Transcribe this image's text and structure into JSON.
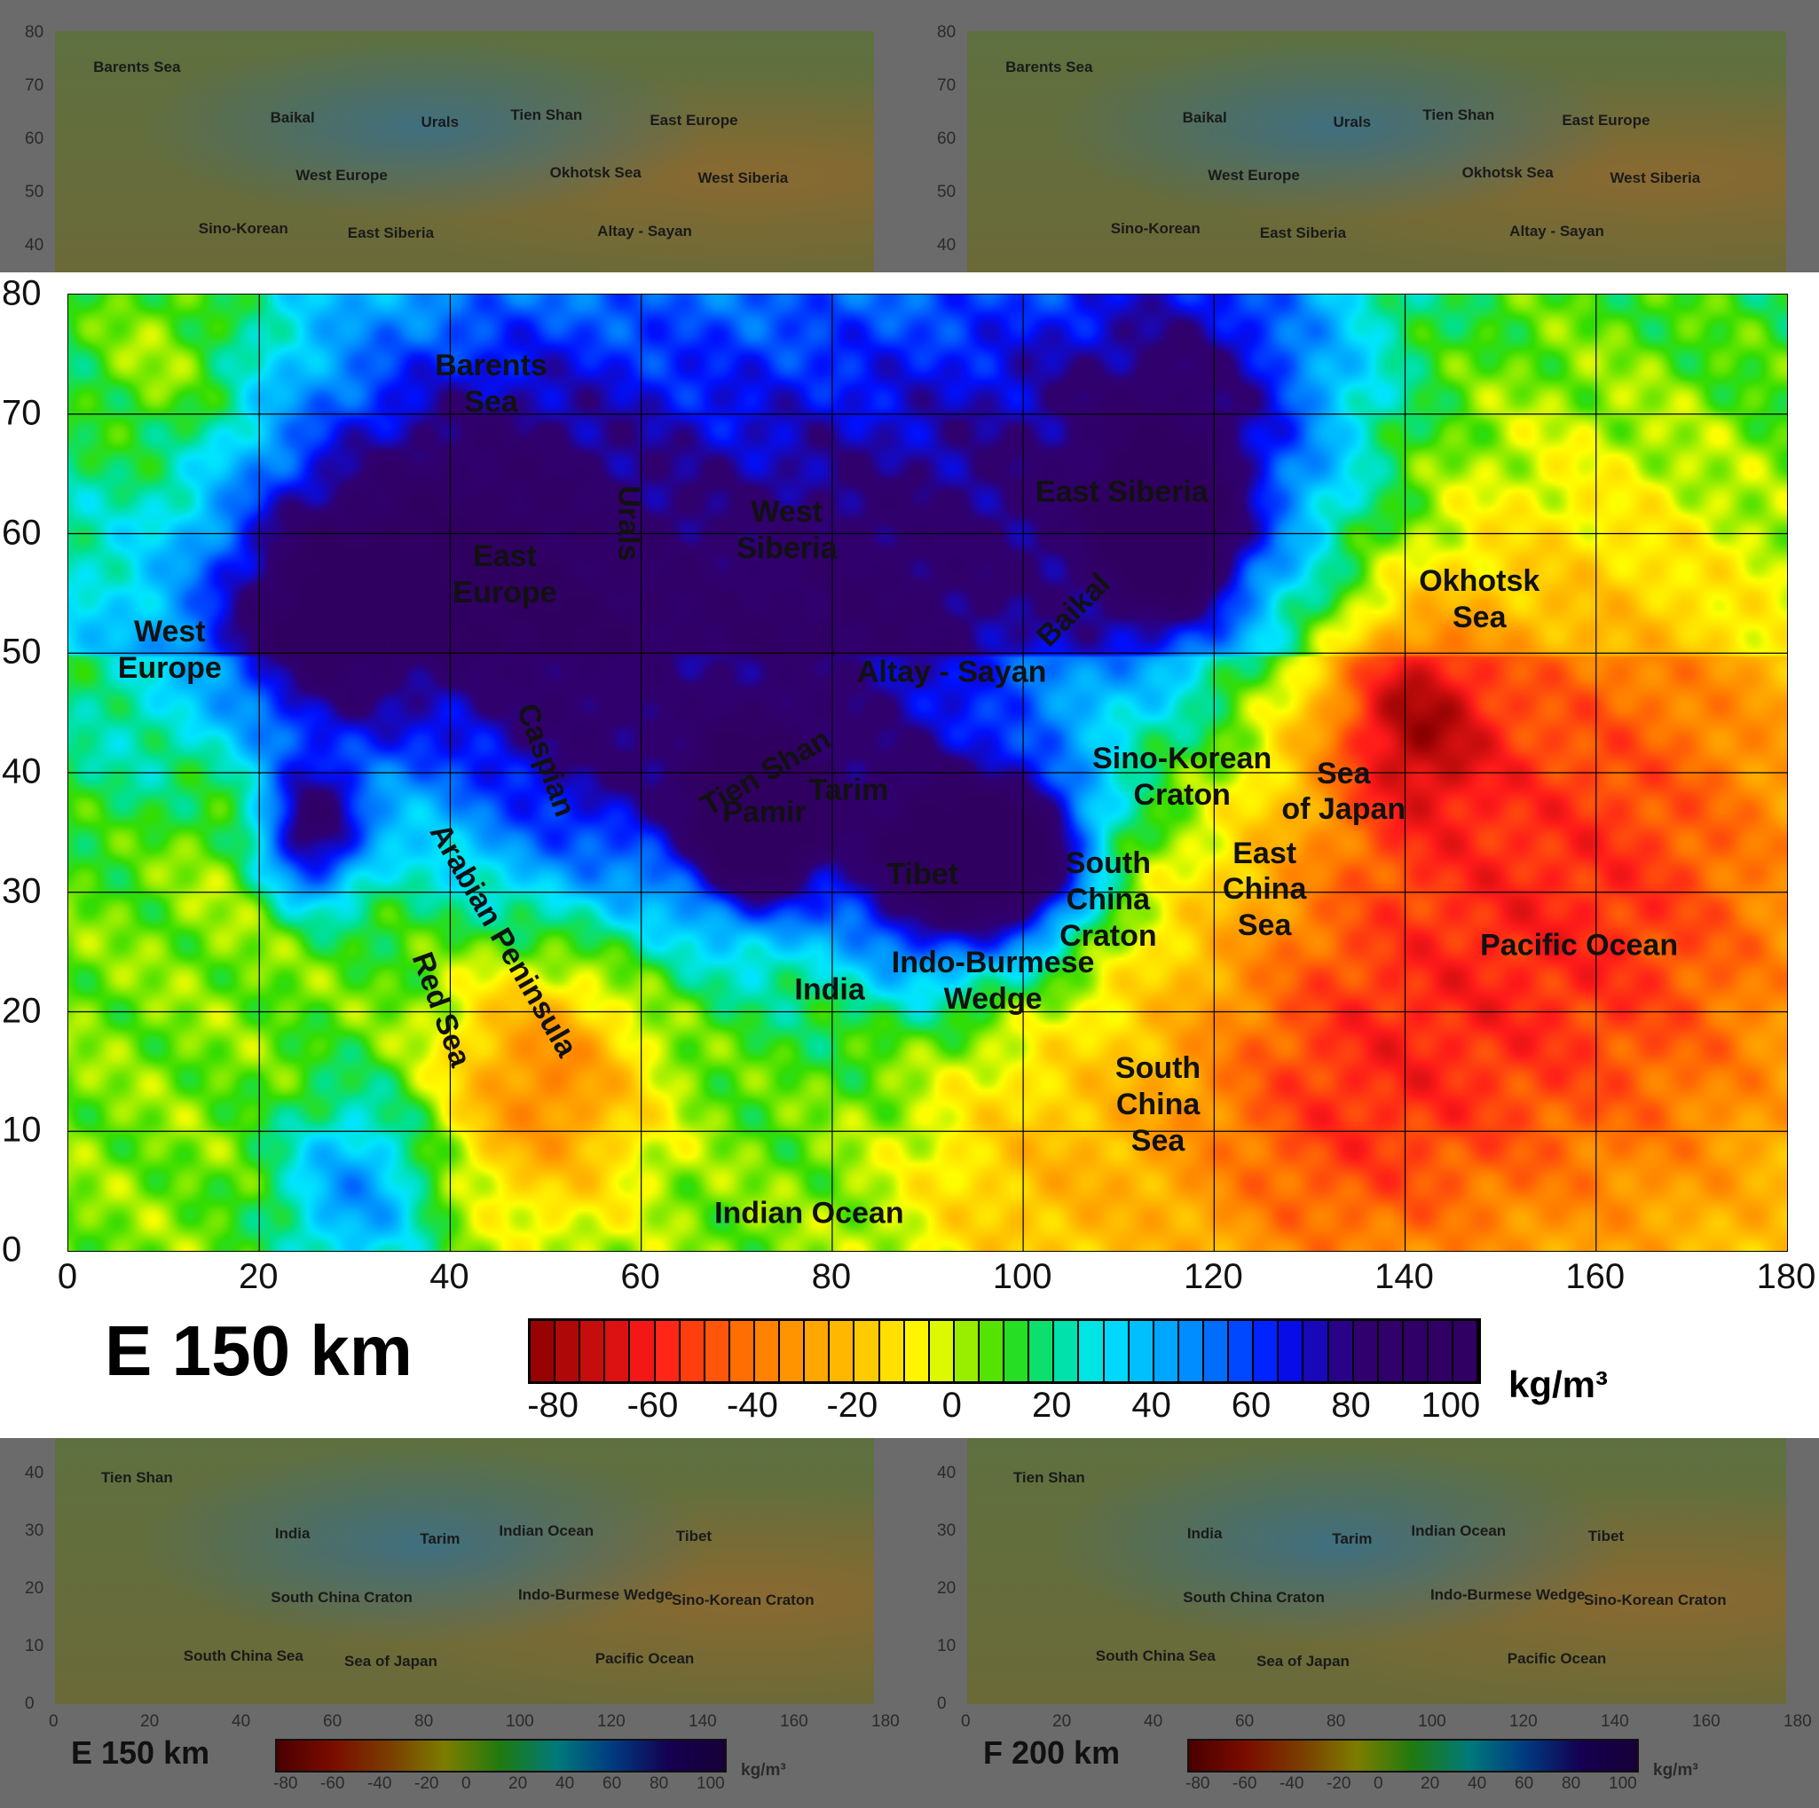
{
  "figure": {
    "panel_title": "E 150 km",
    "unit": "kg/m³",
    "x_ticks": [
      "0",
      "20",
      "40",
      "60",
      "80",
      "100",
      "120",
      "140",
      "160",
      "180"
    ],
    "y_ticks": [
      "0",
      "10",
      "20",
      "30",
      "40",
      "50",
      "60",
      "70",
      "80"
    ],
    "colorbar": {
      "ticks": [
        "-80",
        "-60",
        "-40",
        "-20",
        "0",
        "20",
        "40",
        "60",
        "80",
        "100"
      ],
      "range": [
        -85,
        105
      ],
      "step": 5,
      "colormap": [
        "#8b0000",
        "#ff1a1a",
        "#ff7a00",
        "#ffc000",
        "#ffff00",
        "#33dd00",
        "#00e090",
        "#00e5ff",
        "#0080ff",
        "#0010ff",
        "#300070",
        "#300060"
      ]
    },
    "labels": [
      "Barents Sea",
      "East Siberia",
      "Urals",
      "West Siberia",
      "East Europe",
      "Okhotsk Sea",
      "Baikal",
      "West Europe",
      "Altay - Sayan",
      "Sino-Korean Craton",
      "Caspian",
      "Tien Shan",
      "Tarim",
      "Pamir",
      "Sea of Japan",
      "Arabian Peninsula",
      "Tibet",
      "South China Craton",
      "East China Sea",
      "Pacific Ocean",
      "Indo-Burmese Wedge",
      "India",
      "Red Sea",
      "South China Sea",
      "Indian Ocean"
    ]
  },
  "background_panels": {
    "top_labels": [
      "Barents Sea",
      "Urals",
      "West Siberia",
      "East Siberia",
      "East Europe",
      "West Europe",
      "Altay - Sayan",
      "Baikal",
      "Okhotsk Sea",
      "Sino-Korean",
      "Tien Shan"
    ],
    "top_y_ticks": [
      "80",
      "70",
      "60",
      "50",
      "40"
    ],
    "bottom_left_title": "E 150 km",
    "bottom_right_title": "F 200 km",
    "bottom_labels": [
      "Tien Shan",
      "Tarim",
      "Sino-Korean Craton",
      "Sea of Japan",
      "Tibet",
      "South China Craton",
      "Pacific Ocean",
      "India",
      "Indo-Burmese Wedge",
      "South China Sea",
      "Indian Ocean"
    ],
    "bottom_y_ticks": [
      "40",
      "30",
      "20",
      "10",
      "0"
    ],
    "bottom_x_ticks": [
      "0",
      "20",
      "40",
      "60",
      "80",
      "100",
      "120",
      "140",
      "160",
      "180"
    ],
    "bottom_cbar_ticks": [
      "-80",
      "-60",
      "-40",
      "-20",
      "0",
      "20",
      "40",
      "60",
      "80",
      "100"
    ],
    "unit": "kg/m³"
  }
}
